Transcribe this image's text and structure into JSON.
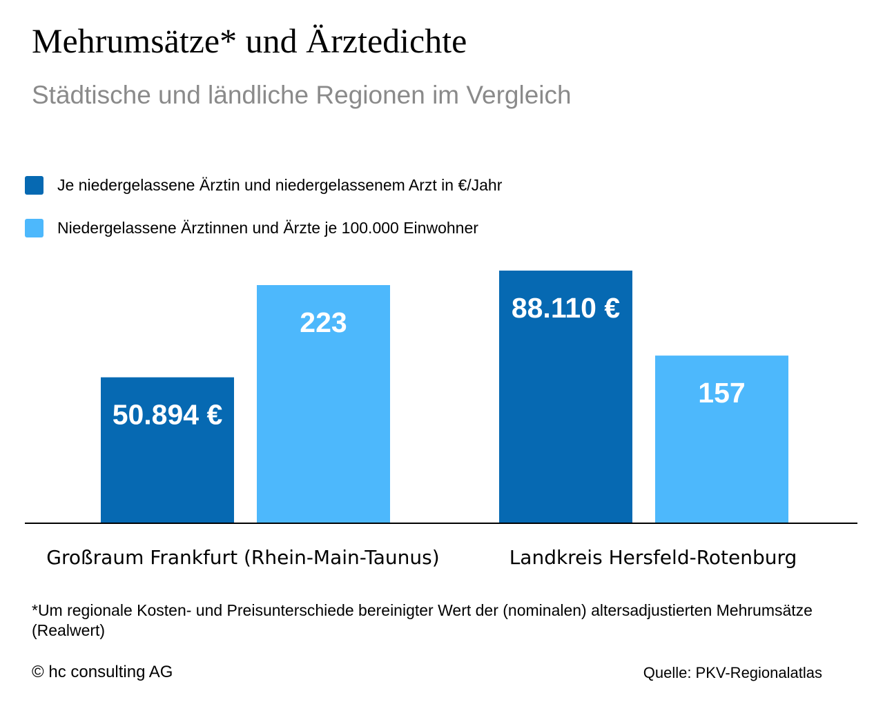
{
  "chart_data": {
    "type": "bar",
    "title": "Mehrumsätze* und Ärztedichte",
    "subtitle": "Städtische und ländliche Regionen im Vergleich",
    "categories": [
      "Großraum Frankfurt (Rhein-Main-Taunus)",
      "Landkreis Hersfeld-Rotenburg"
    ],
    "series": [
      {
        "name": "Je niedergelassene Ärztin und niedergelassenem Arzt in €/Jahr",
        "color": "#0669b2",
        "values": [
          50894,
          88110
        ],
        "labels": [
          "50.894 €",
          "88.110 €"
        ]
      },
      {
        "name": "Niedergelassene Ärztinnen und Ärzte je 100.000 Einwohner",
        "color": "#4db8fc",
        "values": [
          223,
          157
        ],
        "labels": [
          "223",
          "157"
        ]
      }
    ],
    "legend": "top-left",
    "grid": false
  },
  "footnote": "*Um regionale Kosten- und Preisunterschiede bereinigter Wert der (nominalen) altersadjustierten Mehrumsätze (Realwert)",
  "copyright": "© hc consulting AG",
  "source": "Quelle: PKV-Regionalatlas"
}
